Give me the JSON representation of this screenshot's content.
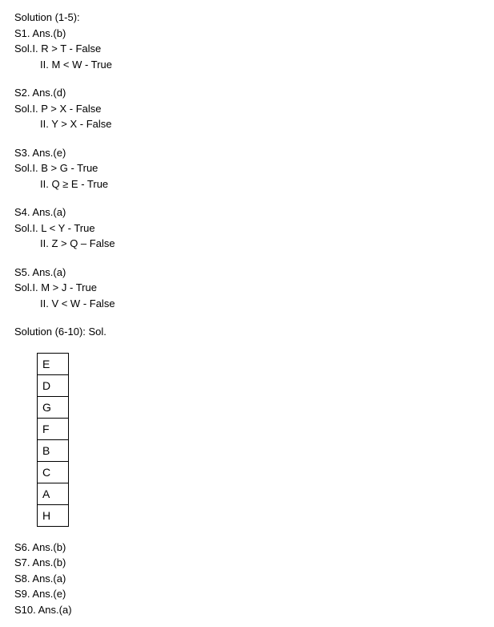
{
  "header1": "Solution (1-5):",
  "s1": {
    "ans": "S1. Ans.(b)",
    "sol1": "Sol.I. R > T - False",
    "sol2": "II. M < W - True"
  },
  "s2": {
    "ans": "S2. Ans.(d)",
    "sol1": "Sol.I. P > X - False",
    "sol2": "II. Y > X - False"
  },
  "s3": {
    "ans": "S3. Ans.(e)",
    "sol1": "Sol.I. B > G - True",
    "sol2": "II. Q ≥ E - True"
  },
  "s4": {
    "ans": "S4. Ans.(a)",
    "sol1": "Sol.I. L < Y - True",
    "sol2": "II. Z > Q – False"
  },
  "s5": {
    "ans": "S5. Ans.(a)",
    "sol1": "Sol.I. M > J - True",
    "sol2": "II. V < W - False"
  },
  "header2": "Solution (6-10): Sol.",
  "letters": [
    "E",
    "D",
    "G",
    "F",
    "B",
    "C",
    "A",
    "H"
  ],
  "s6": "S6. Ans.(b)",
  "s7": "S7. Ans.(b)",
  "s8": "S8. Ans.(a)",
  "s9": "S9. Ans.(e)",
  "s10": "S10. Ans.(a)"
}
